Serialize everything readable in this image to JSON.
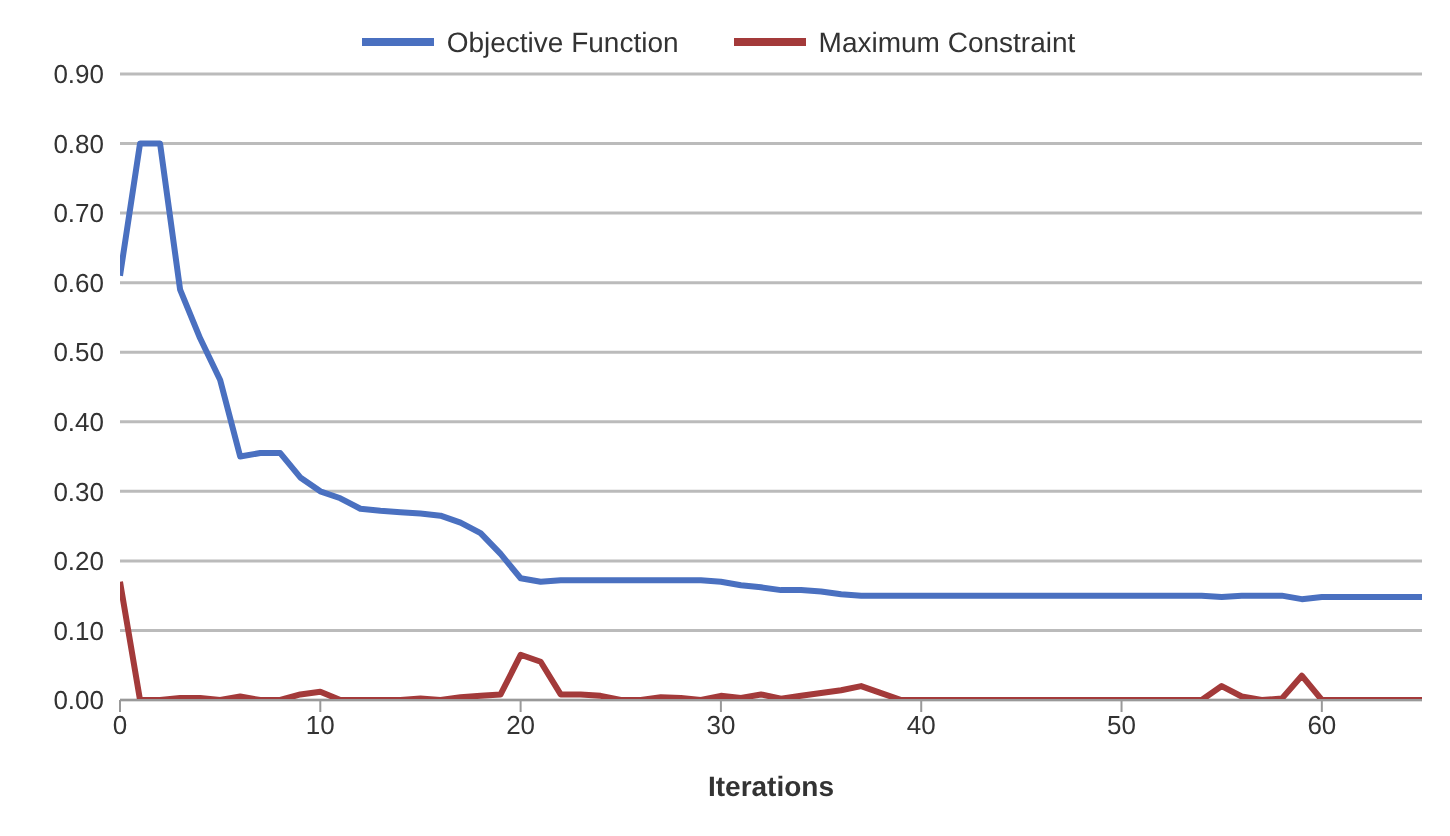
{
  "chart_data": {
    "type": "line",
    "xlabel": "Iterations",
    "x": [
      0,
      1,
      2,
      3,
      4,
      5,
      6,
      7,
      8,
      9,
      10,
      11,
      12,
      13,
      14,
      15,
      16,
      17,
      18,
      19,
      20,
      21,
      22,
      23,
      24,
      25,
      26,
      27,
      28,
      29,
      30,
      31,
      32,
      33,
      34,
      35,
      36,
      37,
      38,
      39,
      40,
      41,
      42,
      43,
      44,
      45,
      46,
      47,
      48,
      49,
      50,
      51,
      52,
      53,
      54,
      55,
      56,
      57,
      58,
      59,
      60,
      61,
      62,
      63,
      64,
      65
    ],
    "series": [
      {
        "name": "Objective Function",
        "color": "#4a70c0",
        "values": [
          0.61,
          0.8,
          0.8,
          0.59,
          0.52,
          0.46,
          0.35,
          0.355,
          0.355,
          0.32,
          0.3,
          0.29,
          0.275,
          0.272,
          0.27,
          0.268,
          0.265,
          0.255,
          0.24,
          0.21,
          0.175,
          0.17,
          0.172,
          0.172,
          0.172,
          0.172,
          0.172,
          0.172,
          0.172,
          0.172,
          0.17,
          0.165,
          0.162,
          0.158,
          0.158,
          0.156,
          0.152,
          0.15,
          0.15,
          0.15,
          0.15,
          0.15,
          0.15,
          0.15,
          0.15,
          0.15,
          0.15,
          0.15,
          0.15,
          0.15,
          0.15,
          0.15,
          0.15,
          0.15,
          0.15,
          0.148,
          0.15,
          0.15,
          0.15,
          0.145,
          0.148,
          0.148,
          0.148,
          0.148,
          0.148,
          0.148
        ]
      },
      {
        "name": "Maximum Constraint",
        "color": "#a33a3a",
        "values": [
          0.17,
          0,
          0,
          0.003,
          0.003,
          0,
          0.005,
          0,
          0,
          0.008,
          0.012,
          0,
          0,
          0,
          0,
          0.002,
          0,
          0.004,
          0.006,
          0.008,
          0.065,
          0.055,
          0.008,
          0.008,
          0.006,
          0,
          0,
          0.004,
          0.003,
          0,
          0.006,
          0.003,
          0.008,
          0.002,
          0.006,
          0.01,
          0.014,
          0.02,
          0.01,
          0,
          0,
          0,
          0,
          0,
          0,
          0,
          0,
          0,
          0,
          0,
          0,
          0,
          0,
          0,
          0,
          0.02,
          0.005,
          0,
          0.002,
          0.035,
          0,
          0,
          0,
          0,
          0,
          0
        ]
      }
    ],
    "xlim": [
      0,
      65
    ],
    "xticks": [
      0,
      10,
      20,
      30,
      40,
      50,
      60
    ],
    "ylim": [
      0,
      0.9
    ],
    "yticks": [
      {
        "value": 0,
        "label": "0.00"
      },
      {
        "value": 0.1,
        "label": "0.10"
      },
      {
        "value": 0.2,
        "label": "0.20"
      },
      {
        "value": 0.3,
        "label": "0.30"
      },
      {
        "value": 0.4,
        "label": "0.40"
      },
      {
        "value": 0.5,
        "label": "0.50"
      },
      {
        "value": 0.6,
        "label": "0.60"
      },
      {
        "value": 0.7,
        "label": "0.70"
      },
      {
        "value": 0.8,
        "label": "0.80"
      },
      {
        "value": 0.9,
        "label": "0.90"
      }
    ],
    "grid": "y",
    "legend": "top",
    "marker": "none",
    "line_style": "solid"
  }
}
